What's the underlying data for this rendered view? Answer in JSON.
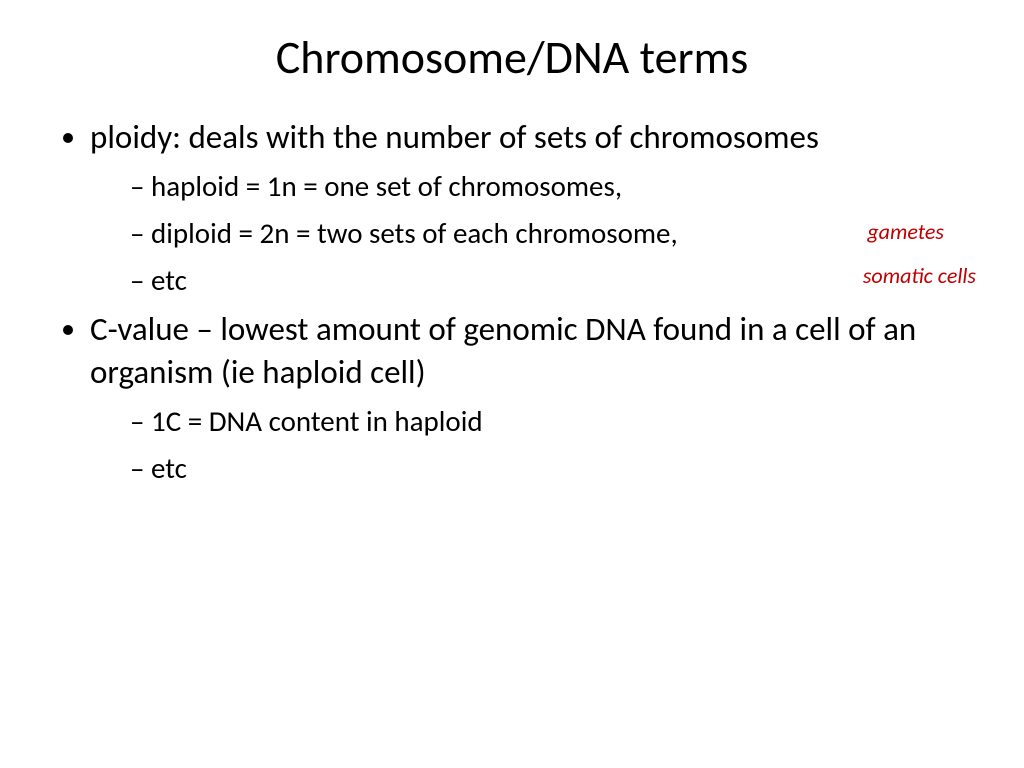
{
  "title": "Chromosome/DNA terms",
  "bullets": {
    "b1": "ploidy:  deals with the number of sets of chromosomes",
    "b1_sub": {
      "s1": "haploid = 1n = one set of chromosomes,",
      "s2": "diploid = 2n = two sets of each chromosome,",
      "s3": "etc"
    },
    "b2": "C-value – lowest amount of genomic DNA found in a cell of an organism (ie haploid cell)",
    "b2_sub": {
      "s1": "1C = DNA content in haploid",
      "s2": "etc"
    }
  },
  "annotations": {
    "a1": "gametes",
    "a2": "somatic cells"
  },
  "style": {
    "background_color": "#ffffff",
    "text_color": "#000000",
    "annotation_color": "#c00000",
    "title_fontsize": 46,
    "level1_fontsize": 33,
    "level2_fontsize": 29,
    "annotation_fontsize": 22,
    "font_family": "Calibri"
  }
}
